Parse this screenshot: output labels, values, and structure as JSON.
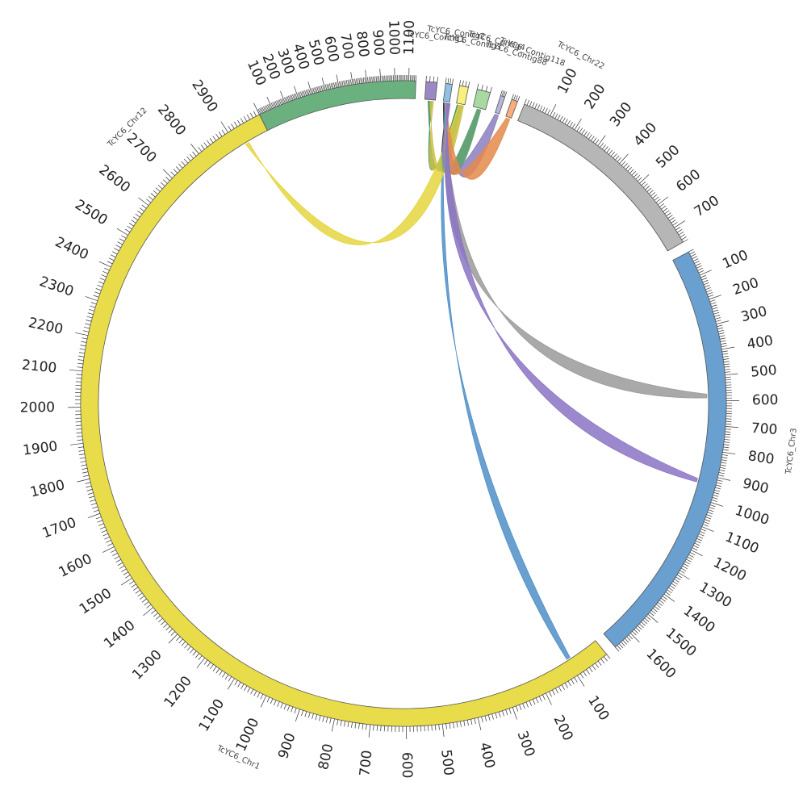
{
  "chart_data": {
    "type": "chord",
    "chromosomes": [
      {
        "name": "TcYC6_Chr1",
        "length": 3000,
        "color": "#e8dc4a",
        "start_deg": 141,
        "end_deg": 333.5,
        "label_every": 100,
        "label_start": 100,
        "label_end": 2900
      },
      {
        "name": "TcYC6_Chr12",
        "length": 1150,
        "color": "#6ab17f",
        "start_deg": 333.5,
        "end_deg": 2.2,
        "label_every": 100,
        "label_start": 100,
        "label_end": 1100
      },
      {
        "name": "TcYC6_Contig1",
        "length": 30,
        "color": "#9b87c4",
        "start_deg": 4.0,
        "end_deg": 6.0,
        "label_every": 0
      },
      {
        "name": "TcYC6_Contig2",
        "length": 30,
        "color": "#8fc1e3",
        "start_deg": 7.5,
        "end_deg": 8.7,
        "label_every": 0
      },
      {
        "name": "TcYC6_Contig3",
        "length": 30,
        "color": "#faf07e",
        "start_deg": 10.0,
        "end_deg": 11.6,
        "label_every": 0
      },
      {
        "name": "TcYC6_Contig4",
        "length": 30,
        "color": "#a8d9a0",
        "start_deg": 13.2,
        "end_deg": 15.6,
        "label_every": 0
      },
      {
        "name": "TcYC6_Contig88",
        "length": 30,
        "color": "#bab4dc",
        "start_deg": 17.5,
        "end_deg": 18.3,
        "label_every": 0
      },
      {
        "name": "TcYC6_Contig118",
        "length": 30,
        "color": "#f8ad7a",
        "start_deg": 19.6,
        "end_deg": 20.7,
        "label_every": 0
      },
      {
        "name": "TcYC6_Chr22",
        "length": 760,
        "color": "#b6b6b6",
        "start_deg": 22.0,
        "end_deg": 60.0,
        "label_every": 100,
        "label_start": 100,
        "label_end": 700
      },
      {
        "name": "TcYC6_Chr3",
        "length": 1680,
        "color": "#6aa0cf",
        "start_deg": 62.0,
        "end_deg": 139.0,
        "label_every": 100,
        "label_start": 100,
        "label_end": 1600
      }
    ],
    "chrom_label_texts": [
      "TcYC6_Chr1",
      "TcYC6_Chr12",
      "TcYC6_Contig1",
      "TcYC6_Contig2",
      "TcYC6_Contig3",
      "TcYC6_Contig4",
      "TcYC6_Contig88",
      "TcYC6_Contig118",
      "TcYC6_Chr22",
      "TcYC6_Chr3"
    ],
    "links": [
      {
        "from": "TcYC6_Contig1",
        "from_pos": 15,
        "to": "TcYC6_Contig3",
        "to_pos": 10,
        "color": "#3f8a62"
      },
      {
        "from": "TcYC6_Contig2",
        "from_pos": 10,
        "to": "TcYC6_Contig4",
        "to_pos": 15,
        "color": "#2d2d2d"
      },
      {
        "from": "TcYC6_Contig2",
        "from_pos": 18,
        "to": "TcYC6_Chr1",
        "to_pos": 95,
        "color": "#4f8fc7"
      },
      {
        "from": "TcYC6_Contig3",
        "from_pos": 15,
        "to": "TcYC6_Chr1",
        "to_pos": 2930,
        "color": "#e5d540"
      },
      {
        "from": "TcYC6_Contig3",
        "from_pos": 20,
        "to": "TcYC6_Contig1",
        "to_pos": 20,
        "color": "#c8c24a"
      },
      {
        "from": "TcYC6_Contig4",
        "from_pos": 15,
        "to": "TcYC6_Contig2",
        "to_pos": 18,
        "color": "#6ab17f"
      },
      {
        "from": "TcYC6_Contig88",
        "from_pos": 15,
        "to": "TcYC6_Contig2",
        "to_pos": 15,
        "color": "#8b7fbf"
      },
      {
        "from": "TcYC6_Contig118",
        "from_pos": 15,
        "to": "TcYC6_Contig2",
        "to_pos": 22,
        "color": "#e48a4a"
      },
      {
        "from": "TcYC6_Contig2",
        "from_pos": 20,
        "to": "TcYC6_Chr3",
        "to_pos": 580,
        "color": "#9a9a9a"
      },
      {
        "from": "TcYC6_Contig2",
        "from_pos": 25,
        "to": "TcYC6_Chr3",
        "to_pos": 930,
        "color": "#8b74c4"
      }
    ]
  }
}
